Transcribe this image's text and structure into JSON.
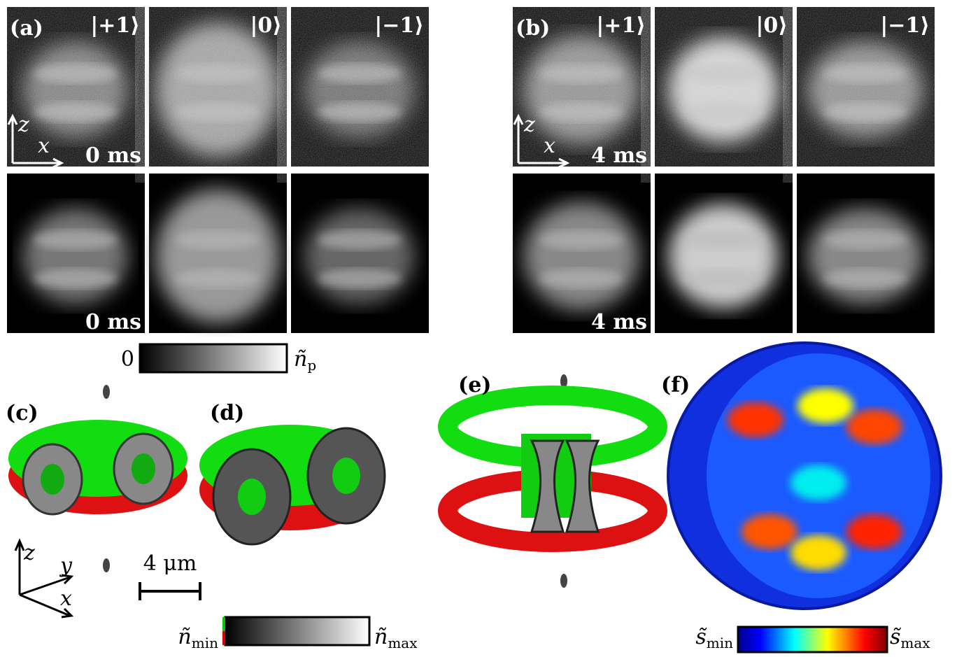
{
  "panels": [
    {
      "label": "(a)",
      "states": [
        "|+1⟩",
        "|0⟩",
        "|−1⟩"
      ],
      "time_experiment": "0 ms",
      "time_simulation": "0 ms"
    },
    {
      "label": "(b)",
      "states": [
        "|+1⟩",
        "|0⟩",
        "|−1⟩"
      ],
      "time_experiment": "4 ms",
      "time_simulation": "4 ms"
    }
  ],
  "axes_2d": {
    "vertical": "z",
    "horizontal": "x"
  },
  "colorbar_projection": {
    "min": "0",
    "max_symbol": "ñ",
    "max_sub": "p"
  },
  "panel_labels_3d": [
    "(c)",
    "(d)",
    "(e)",
    "(f)"
  ],
  "axes_3d": {
    "z": "z",
    "y": "y",
    "x": "x"
  },
  "scale_bar": "4 μm",
  "colorbar_density": {
    "min_symbol": "ñ",
    "min_sub": "min",
    "max_symbol": "ñ",
    "max_sub": "max"
  },
  "colorbar_spin": {
    "min_symbol": "s̃",
    "min_sub": "min",
    "max_symbol": "s̃",
    "max_sub": "max"
  }
}
